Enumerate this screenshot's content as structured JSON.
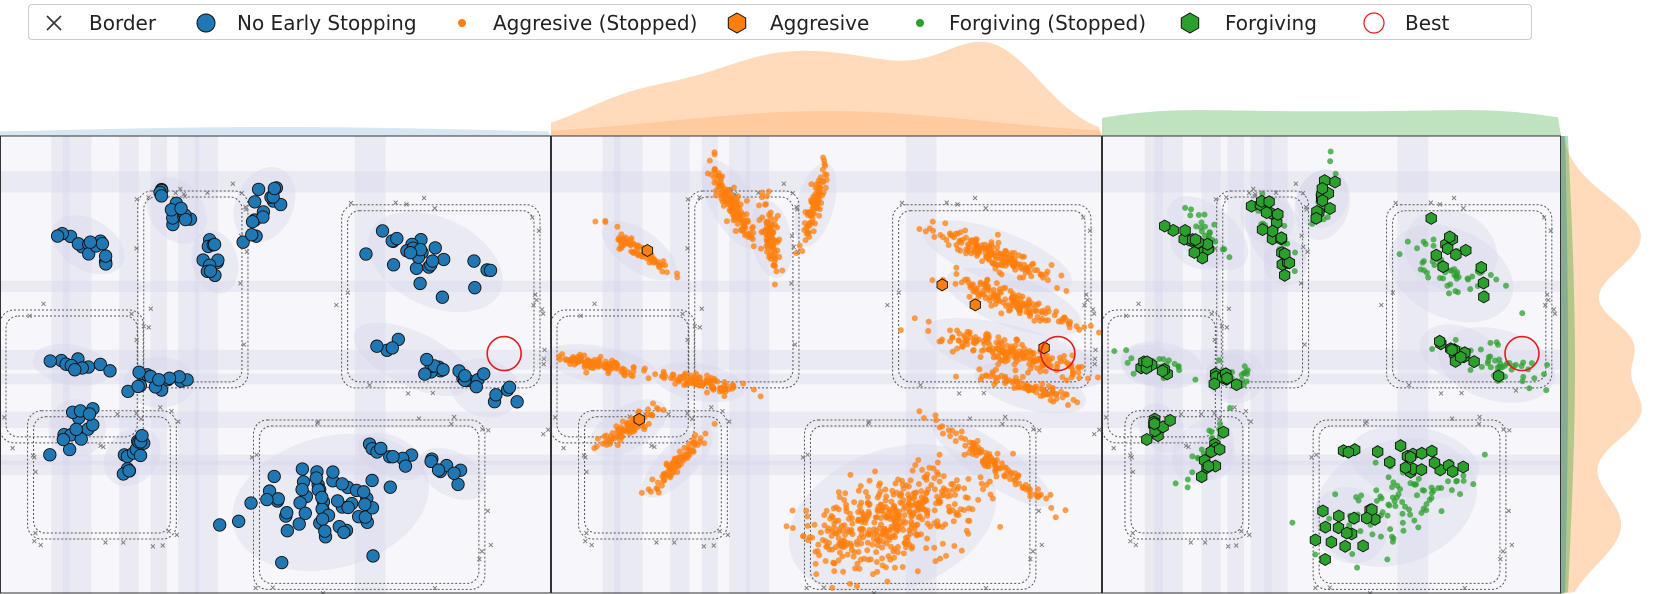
{
  "legend": [
    {
      "label": "Border",
      "marker": "x-icon",
      "color": "#333333"
    },
    {
      "label": "No Early Stopping",
      "marker": "circle-icon",
      "color": "#1f77b4"
    },
    {
      "label": "Aggresive (Stopped)",
      "marker": "dot-icon",
      "color": "#ff7f0e"
    },
    {
      "label": "Aggresive",
      "marker": "hexagon-icon",
      "color": "#ff7f0e"
    },
    {
      "label": "Forgiving (Stopped)",
      "marker": "dot-icon",
      "color": "#2ca02c"
    },
    {
      "label": "Forgiving",
      "marker": "hexagon-icon",
      "color": "#2ca02c"
    },
    {
      "label": "Best",
      "marker": "ring-icon",
      "color": "#e41a1c"
    }
  ],
  "colors": {
    "no_early_stopping": "#1f77b4",
    "aggresive": "#ff7f0e",
    "forgiving": "#2ca02c",
    "best": "#e41a1c",
    "border": "#7f7f7f",
    "density_background": "#b9b7d9"
  },
  "chart_data": [
    {
      "type": "scatter",
      "panel": "No Early Stopping",
      "xlim": [
        0,
        10
      ],
      "ylim": [
        0,
        8
      ],
      "series": [
        {
          "name": "No Early Stopping",
          "marker": "circle",
          "clusters": [
            {
              "cx": 1.6,
              "cy": 6.1,
              "angle": -30,
              "rx": 0.55,
              "ry": 0.18,
              "n": 14
            },
            {
              "cx": 3.2,
              "cy": 6.7,
              "angle": -55,
              "rx": 0.5,
              "ry": 0.2,
              "n": 14
            },
            {
              "cx": 3.9,
              "cy": 5.8,
              "angle": -75,
              "rx": 0.45,
              "ry": 0.15,
              "n": 10
            },
            {
              "cx": 4.8,
              "cy": 6.8,
              "angle": 65,
              "rx": 0.55,
              "ry": 0.22,
              "n": 16
            },
            {
              "cx": 7.9,
              "cy": 5.8,
              "angle": -25,
              "rx": 1.0,
              "ry": 0.4,
              "n": 26
            },
            {
              "cx": 7.5,
              "cy": 4.1,
              "angle": -25,
              "rx": 0.9,
              "ry": 0.2,
              "n": 14
            },
            {
              "cx": 8.8,
              "cy": 3.6,
              "angle": -20,
              "rx": 0.5,
              "ry": 0.22,
              "n": 12
            },
            {
              "cx": 1.3,
              "cy": 4.0,
              "angle": -10,
              "rx": 0.55,
              "ry": 0.12,
              "n": 12
            },
            {
              "cx": 2.9,
              "cy": 3.7,
              "angle": 0,
              "rx": 0.5,
              "ry": 0.18,
              "n": 14
            },
            {
              "cx": 1.4,
              "cy": 2.9,
              "angle": 45,
              "rx": 0.4,
              "ry": 0.22,
              "n": 14
            },
            {
              "cx": 2.4,
              "cy": 2.4,
              "angle": 50,
              "rx": 0.45,
              "ry": 0.18,
              "n": 16
            },
            {
              "cx": 6.0,
              "cy": 1.6,
              "angle": 15,
              "rx": 1.4,
              "ry": 0.65,
              "n": 56
            },
            {
              "cx": 7.1,
              "cy": 2.4,
              "angle": -25,
              "rx": 0.5,
              "ry": 0.12,
              "n": 8
            },
            {
              "cx": 8.2,
              "cy": 2.1,
              "angle": -30,
              "rx": 0.5,
              "ry": 0.14,
              "n": 8
            }
          ]
        }
      ],
      "best": {
        "x": 9.15,
        "y": 4.2
      }
    },
    {
      "type": "scatter",
      "panel": "Aggresive",
      "xlim": [
        0,
        10
      ],
      "ylim": [
        0,
        8
      ],
      "series": [
        {
          "name": "Aggresive (Stopped)",
          "marker": "dot",
          "clusters": [
            {
              "cx": 1.6,
              "cy": 6.0,
              "angle": -35,
              "rx": 0.6,
              "ry": 0.12,
              "n": 80
            },
            {
              "cx": 3.3,
              "cy": 6.8,
              "angle": -60,
              "rx": 0.7,
              "ry": 0.14,
              "n": 140
            },
            {
              "cx": 4.0,
              "cy": 6.2,
              "angle": -80,
              "rx": 0.55,
              "ry": 0.12,
              "n": 90
            },
            {
              "cx": 4.8,
              "cy": 6.8,
              "angle": 75,
              "rx": 0.6,
              "ry": 0.1,
              "n": 90
            },
            {
              "cx": 8.1,
              "cy": 5.9,
              "angle": -20,
              "rx": 1.1,
              "ry": 0.18,
              "n": 170
            },
            {
              "cx": 8.4,
              "cy": 5.1,
              "angle": -20,
              "rx": 1.0,
              "ry": 0.18,
              "n": 150
            },
            {
              "cx": 8.4,
              "cy": 4.2,
              "angle": -15,
              "rx": 1.3,
              "ry": 0.2,
              "n": 200
            },
            {
              "cx": 8.7,
              "cy": 3.6,
              "angle": -15,
              "rx": 0.8,
              "ry": 0.14,
              "n": 80
            },
            {
              "cx": 0.9,
              "cy": 4.0,
              "angle": -10,
              "rx": 0.8,
              "ry": 0.1,
              "n": 110
            },
            {
              "cx": 2.7,
              "cy": 3.7,
              "angle": -10,
              "rx": 0.65,
              "ry": 0.1,
              "n": 90
            },
            {
              "cx": 1.4,
              "cy": 2.9,
              "angle": 30,
              "rx": 0.6,
              "ry": 0.14,
              "n": 80
            },
            {
              "cx": 2.3,
              "cy": 2.3,
              "angle": 45,
              "rx": 0.65,
              "ry": 0.1,
              "n": 90
            },
            {
              "cx": 6.2,
              "cy": 1.3,
              "angle": 20,
              "rx": 1.5,
              "ry": 0.7,
              "n": 450
            },
            {
              "cx": 8.0,
              "cy": 2.3,
              "angle": -35,
              "rx": 1.0,
              "ry": 0.12,
              "n": 110
            }
          ]
        },
        {
          "name": "Aggresive",
          "marker": "hexagon",
          "points": [
            [
              1.75,
              6.0
            ],
            [
              7.1,
              5.4
            ],
            [
              7.7,
              5.05
            ],
            [
              1.6,
              3.05
            ],
            [
              8.95,
              4.3
            ]
          ]
        }
      ],
      "best": {
        "x": 9.2,
        "y": 4.2
      }
    },
    {
      "type": "scatter",
      "panel": "Forgiving",
      "xlim": [
        0,
        10
      ],
      "ylim": [
        0,
        8
      ],
      "series": [
        {
          "name": "Forgiving (Stopped)",
          "marker": "dot",
          "clusters": [
            {
              "cx": 2.3,
              "cy": 6.3,
              "angle": -40,
              "rx": 0.8,
              "ry": 0.2,
              "n": 25
            },
            {
              "cx": 3.8,
              "cy": 6.3,
              "angle": -60,
              "rx": 0.7,
              "ry": 0.2,
              "n": 25
            },
            {
              "cx": 4.8,
              "cy": 6.8,
              "angle": 75,
              "rx": 0.6,
              "ry": 0.2,
              "n": 20
            },
            {
              "cx": 7.6,
              "cy": 5.6,
              "angle": -25,
              "rx": 1.1,
              "ry": 0.4,
              "n": 50
            },
            {
              "cx": 8.6,
              "cy": 4.0,
              "angle": -15,
              "rx": 1.0,
              "ry": 0.3,
              "n": 45
            },
            {
              "cx": 1.3,
              "cy": 4.0,
              "angle": -10,
              "rx": 0.7,
              "ry": 0.15,
              "n": 25
            },
            {
              "cx": 2.9,
              "cy": 3.8,
              "angle": 0,
              "rx": 0.5,
              "ry": 0.2,
              "n": 20
            },
            {
              "cx": 2.2,
              "cy": 2.5,
              "angle": 50,
              "rx": 0.6,
              "ry": 0.2,
              "n": 20
            },
            {
              "cx": 6.4,
              "cy": 1.6,
              "angle": 20,
              "rx": 1.4,
              "ry": 0.6,
              "n": 90
            }
          ]
        },
        {
          "name": "Forgiving",
          "marker": "hexagon",
          "clusters": [
            {
              "cx": 2.1,
              "cy": 6.1,
              "angle": -30,
              "rx": 0.5,
              "ry": 0.15,
              "n": 14
            },
            {
              "cx": 3.6,
              "cy": 6.6,
              "angle": -55,
              "rx": 0.5,
              "ry": 0.18,
              "n": 12
            },
            {
              "cx": 4.0,
              "cy": 5.8,
              "angle": -75,
              "rx": 0.4,
              "ry": 0.14,
              "n": 8
            },
            {
              "cx": 4.8,
              "cy": 6.9,
              "angle": 65,
              "rx": 0.5,
              "ry": 0.18,
              "n": 12
            },
            {
              "cx": 7.6,
              "cy": 6.0,
              "angle": -25,
              "rx": 0.8,
              "ry": 0.35,
              "n": 12
            },
            {
              "cx": 7.8,
              "cy": 4.2,
              "angle": -20,
              "rx": 0.7,
              "ry": 0.2,
              "n": 12
            },
            {
              "cx": 1.0,
              "cy": 4.0,
              "angle": -10,
              "rx": 0.45,
              "ry": 0.12,
              "n": 8
            },
            {
              "cx": 2.8,
              "cy": 3.8,
              "angle": 0,
              "rx": 0.4,
              "ry": 0.15,
              "n": 8
            },
            {
              "cx": 1.3,
              "cy": 2.9,
              "angle": 40,
              "rx": 0.35,
              "ry": 0.2,
              "n": 10
            },
            {
              "cx": 2.4,
              "cy": 2.4,
              "angle": 50,
              "rx": 0.4,
              "ry": 0.15,
              "n": 10
            },
            {
              "cx": 5.4,
              "cy": 1.2,
              "angle": 40,
              "rx": 0.6,
              "ry": 0.35,
              "n": 16
            },
            {
              "cx": 6.8,
              "cy": 2.3,
              "angle": -10,
              "rx": 1.1,
              "ry": 0.3,
              "n": 20
            }
          ]
        }
      ],
      "best": {
        "x": 9.15,
        "y": 4.2
      }
    }
  ]
}
